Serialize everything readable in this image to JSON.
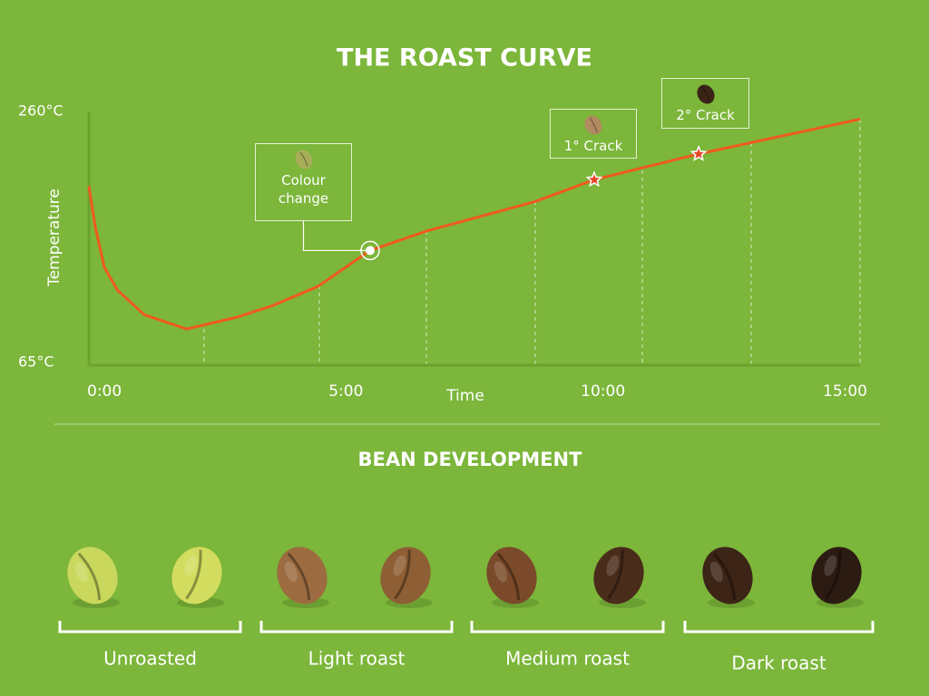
{
  "chart_data": {
    "type": "line",
    "title": "THE ROAST CURVE",
    "x_label": "Time",
    "y_label": "Temperature",
    "xlim": [
      0,
      15
    ],
    "ylim": [
      65,
      260
    ],
    "xticks": [
      {
        "value": 0,
        "label": "0:00"
      },
      {
        "value": 5,
        "label": "5:00"
      },
      {
        "value": 10,
        "label": "10:00"
      },
      {
        "value": 15,
        "label": "15:00"
      }
    ],
    "yticks": [
      {
        "value": 65,
        "label": "65°C"
      },
      {
        "value": 260,
        "label": "260°C"
      }
    ],
    "series": [
      {
        "name": "Temperature",
        "color": "#f05a1e",
        "x": [
          0,
          0.12,
          0.3,
          0.56,
          1.08,
          1.9,
          2.86,
          3.56,
          4.45,
          5.47,
          6.56,
          8.68,
          9.83,
          11.86,
          15
        ],
        "values": [
          202,
          171,
          139,
          121,
          102,
          91,
          100,
          109,
          124,
          152,
          167,
          190,
          207,
          227,
          254
        ]
      }
    ],
    "annotations": [
      {
        "label": "Colour change",
        "x": 5.47,
        "y": 152
      },
      {
        "label": "1° Crack",
        "x": 9.83,
        "y": 207
      },
      {
        "label": "2° Crack",
        "x": 11.86,
        "y": 227
      }
    ]
  },
  "bean_development": {
    "title": "BEAN DEVELOPMENT",
    "groups": [
      {
        "label": "Unroasted",
        "colors": [
          "#c9d85c",
          "#d2dc5e"
        ]
      },
      {
        "label": "Light roast",
        "colors": [
          "#9c6c40",
          "#8e5e34"
        ]
      },
      {
        "label": "Medium roast",
        "colors": [
          "#7a4a2a",
          "#4a2c1a"
        ]
      },
      {
        "label": "Dark roast",
        "colors": [
          "#3c2417",
          "#2c1b12"
        ]
      }
    ]
  }
}
